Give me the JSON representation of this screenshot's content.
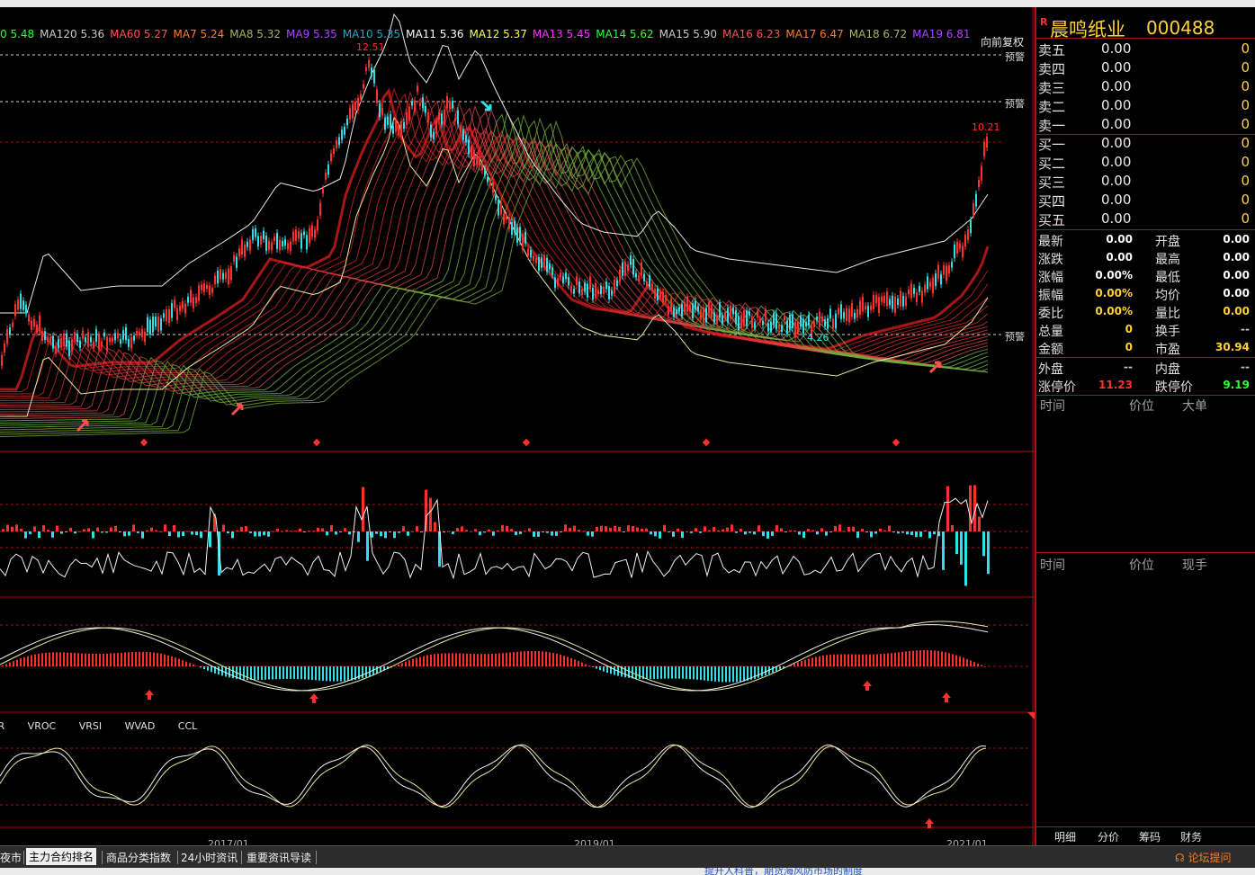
{
  "ma_legend": [
    {
      "text": "0 5.48",
      "color": "#30ff30"
    },
    {
      "text": "MA120 5.36",
      "color": "#c8c8c8"
    },
    {
      "text": "MA60 5.27",
      "color": "#ff5050"
    },
    {
      "text": "MA7 5.24",
      "color": "#ff7a2a"
    },
    {
      "text": "MA8 5.32",
      "color": "#b0b060"
    },
    {
      "text": "MA9 5.35",
      "color": "#b040ff"
    },
    {
      "text": "MA10 5.35",
      "color": "#20a8c8"
    },
    {
      "text": "MA11 5.36",
      "color": "#ffffff"
    },
    {
      "text": "MA12 5.37",
      "color": "#ffff40"
    },
    {
      "text": "MA13 5.45",
      "color": "#ff30ff"
    },
    {
      "text": "MA14 5.62",
      "color": "#30ff30"
    },
    {
      "text": "MA15 5.90",
      "color": "#c8c8c8"
    },
    {
      "text": "MA16 6.23",
      "color": "#ff5050"
    },
    {
      "text": "MA17 6.47",
      "color": "#ff7a2a"
    },
    {
      "text": "MA18 6.72",
      "color": "#b0b060"
    },
    {
      "text": "MA19 6.81",
      "color": "#b040ff"
    }
  ],
  "restore_label": "向前复权",
  "warn_label": "预警",
  "price_marks": {
    "high": "12.51",
    "recent_high": "10.21",
    "low": "4.26"
  },
  "indicator_tabs": [
    "VR",
    "VROC",
    "VRSI",
    "WVAD",
    "CCL"
  ],
  "x_dates": [
    "2017/01",
    "2019/01",
    "2021/01"
  ],
  "colors": {
    "up": "#ff3030",
    "down": "#30e0e8",
    "frame": "#b01010",
    "accent": "#ffd23c"
  },
  "stock": {
    "flag": "R",
    "name": "晨鸣纸业",
    "code": "000488"
  },
  "order_book": {
    "asks": [
      {
        "label": "卖五",
        "price": "0.00",
        "volume": "0"
      },
      {
        "label": "卖四",
        "price": "0.00",
        "volume": "0"
      },
      {
        "label": "卖三",
        "price": "0.00",
        "volume": "0"
      },
      {
        "label": "卖二",
        "price": "0.00",
        "volume": "0"
      },
      {
        "label": "卖一",
        "price": "0.00",
        "volume": "0"
      }
    ],
    "bids": [
      {
        "label": "买一",
        "price": "0.00",
        "volume": "0"
      },
      {
        "label": "买二",
        "price": "0.00",
        "volume": "0"
      },
      {
        "label": "买三",
        "price": "0.00",
        "volume": "0"
      },
      {
        "label": "买四",
        "price": "0.00",
        "volume": "0"
      },
      {
        "label": "买五",
        "price": "0.00",
        "volume": "0"
      }
    ]
  },
  "quote": [
    {
      "l1": "最新",
      "v1": "0.00",
      "c1": "#ffffff",
      "l2": "开盘",
      "v2": "0.00",
      "c2": "#ffffff"
    },
    {
      "l1": "涨跌",
      "v1": "0.00",
      "c1": "#ffffff",
      "l2": "最高",
      "v2": "0.00",
      "c2": "#ffffff"
    },
    {
      "l1": "涨幅",
      "v1": "0.00%",
      "c1": "#ffffff",
      "l2": "最低",
      "v2": "0.00",
      "c2": "#ffffff"
    },
    {
      "l1": "振幅",
      "v1": "0.00%",
      "c1": "#ffd23c",
      "l2": "均价",
      "v2": "0.00",
      "c2": "#ffffff"
    },
    {
      "l1": "委比",
      "v1": "0.00%",
      "c1": "#ffd23c",
      "l2": "量比",
      "v2": "0.00",
      "c2": "#ffd23c"
    },
    {
      "l1": "总量",
      "v1": "0",
      "c1": "#ffd23c",
      "l2": "换手",
      "v2": "--",
      "c2": "#c8c8c8"
    },
    {
      "l1": "金额",
      "v1": "0",
      "c1": "#ffd23c",
      "l2": "市盈",
      "v2": "30.94",
      "c2": "#ffd23c"
    }
  ],
  "trade": [
    {
      "l1": "外盘",
      "v1": "--",
      "c1": "#c8c8c8",
      "l2": "内盘",
      "v2": "--",
      "c2": "#c8c8c8"
    },
    {
      "l1": "涨停价",
      "v1": "11.23",
      "c1": "#ff3030",
      "l2": "跌停价",
      "v2": "9.19",
      "c2": "#30ff30"
    }
  ],
  "tick_headers": {
    "time": "时间",
    "price": "价位",
    "big": "大单"
  },
  "detail_headers": {
    "time": "时间",
    "price": "价位",
    "hand": "现手"
  },
  "panel_tabs": [
    "明细",
    "分价",
    "筹码",
    "财务"
  ],
  "bottom_tabs": [
    "夜市",
    "主力合约排名",
    "商品分类指数",
    "24小时资讯",
    "重要资讯导读"
  ],
  "forum_label": "论坛提问",
  "ticker_text": "提升人科普，期货海风防市场的制度"
}
